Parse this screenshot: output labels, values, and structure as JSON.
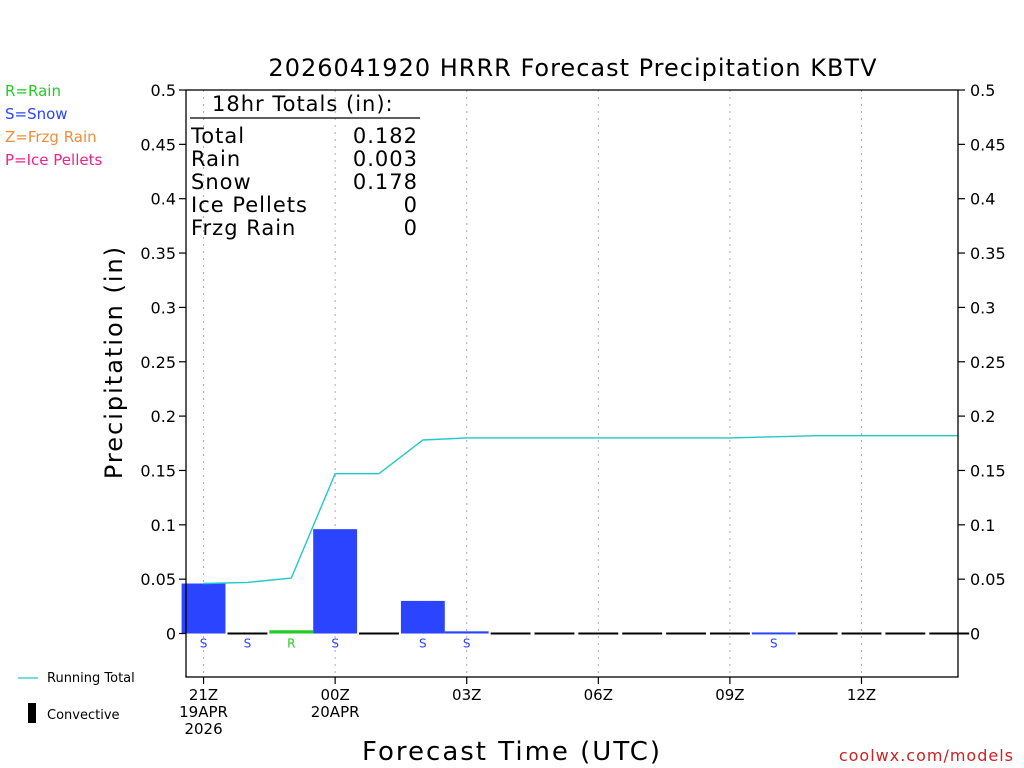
{
  "legend_types": [
    {
      "label": "R=Rain",
      "color": "#22cc22"
    },
    {
      "label": "S=Snow",
      "color": "#2a44ff"
    },
    {
      "label": "Z=Frzg Rain",
      "color": "#f08c3a"
    },
    {
      "label": "P=Ice Pellets",
      "color": "#ee2288"
    }
  ],
  "legend_bottom": {
    "running_total": "Running Total",
    "convective": "Convective"
  },
  "credit": "coolwx.com/models",
  "totals_box": {
    "title": "18hr Totals (in):",
    "rows": [
      {
        "label": "Total",
        "value": "0.182"
      },
      {
        "label": "Rain",
        "value": "0.003"
      },
      {
        "label": "Snow",
        "value": "0.178"
      },
      {
        "label": "Ice Pellets",
        "value": "0"
      },
      {
        "label": "Frzg Rain",
        "value": "0"
      }
    ]
  },
  "colors": {
    "snow": "#2a44ff",
    "rain": "#22cc22",
    "running_total": "#22c8c8"
  },
  "chart_data": {
    "type": "bar",
    "title": "2026041920 HRRR Forecast Precipitation KBTV",
    "xlabel": "Forecast Time (UTC)",
    "ylabel": "Precipitation (in)",
    "ylim": [
      -0.04,
      0.5
    ],
    "yticks": [
      "0",
      "0.05",
      "0.1",
      "0.15",
      "0.2",
      "0.25",
      "0.3",
      "0.35",
      "0.4",
      "0.45",
      "0.5"
    ],
    "xlim_hours": [
      20.6,
      38.2
    ],
    "xticks": [
      {
        "hour": 21,
        "label": [
          "21Z",
          "19APR",
          "2026"
        ]
      },
      {
        "hour": 24,
        "label": [
          "00Z",
          "20APR"
        ]
      },
      {
        "hour": 27,
        "label": [
          "03Z"
        ]
      },
      {
        "hour": 30,
        "label": [
          "06Z"
        ]
      },
      {
        "hour": 33,
        "label": [
          "09Z"
        ]
      },
      {
        "hour": 36,
        "label": [
          "12Z"
        ]
      }
    ],
    "bars": [
      {
        "hour": 21,
        "value": 0.046,
        "type": "S"
      },
      {
        "hour": 22,
        "value": 0.0,
        "type": "S"
      },
      {
        "hour": 23,
        "value": 0.003,
        "type": "R"
      },
      {
        "hour": 24,
        "value": 0.096,
        "type": "S"
      },
      {
        "hour": 25,
        "value": 0.0,
        "type": ""
      },
      {
        "hour": 26,
        "value": 0.03,
        "type": "S"
      },
      {
        "hour": 27,
        "value": 0.002,
        "type": "S"
      },
      {
        "hour": 28,
        "value": 0.0,
        "type": ""
      },
      {
        "hour": 29,
        "value": 0.0,
        "type": ""
      },
      {
        "hour": 30,
        "value": 0.0,
        "type": ""
      },
      {
        "hour": 31,
        "value": 0.0,
        "type": ""
      },
      {
        "hour": 32,
        "value": 0.0,
        "type": ""
      },
      {
        "hour": 33,
        "value": 0.0,
        "type": ""
      },
      {
        "hour": 34,
        "value": 0.001,
        "type": "S"
      },
      {
        "hour": 35,
        "value": 0.0,
        "type": ""
      },
      {
        "hour": 36,
        "value": 0.0,
        "type": ""
      },
      {
        "hour": 37,
        "value": 0.0,
        "type": ""
      },
      {
        "hour": 38,
        "value": 0.0,
        "type": ""
      }
    ],
    "running_total": {
      "name": "Running Total",
      "x": [
        21,
        22,
        23,
        24,
        25,
        26,
        27,
        28,
        29,
        30,
        31,
        32,
        33,
        34,
        35,
        36,
        37,
        38.2
      ],
      "y": [
        0.046,
        0.047,
        0.051,
        0.147,
        0.147,
        0.178,
        0.18,
        0.18,
        0.18,
        0.18,
        0.18,
        0.18,
        0.18,
        0.181,
        0.182,
        0.182,
        0.182,
        0.182
      ]
    }
  }
}
